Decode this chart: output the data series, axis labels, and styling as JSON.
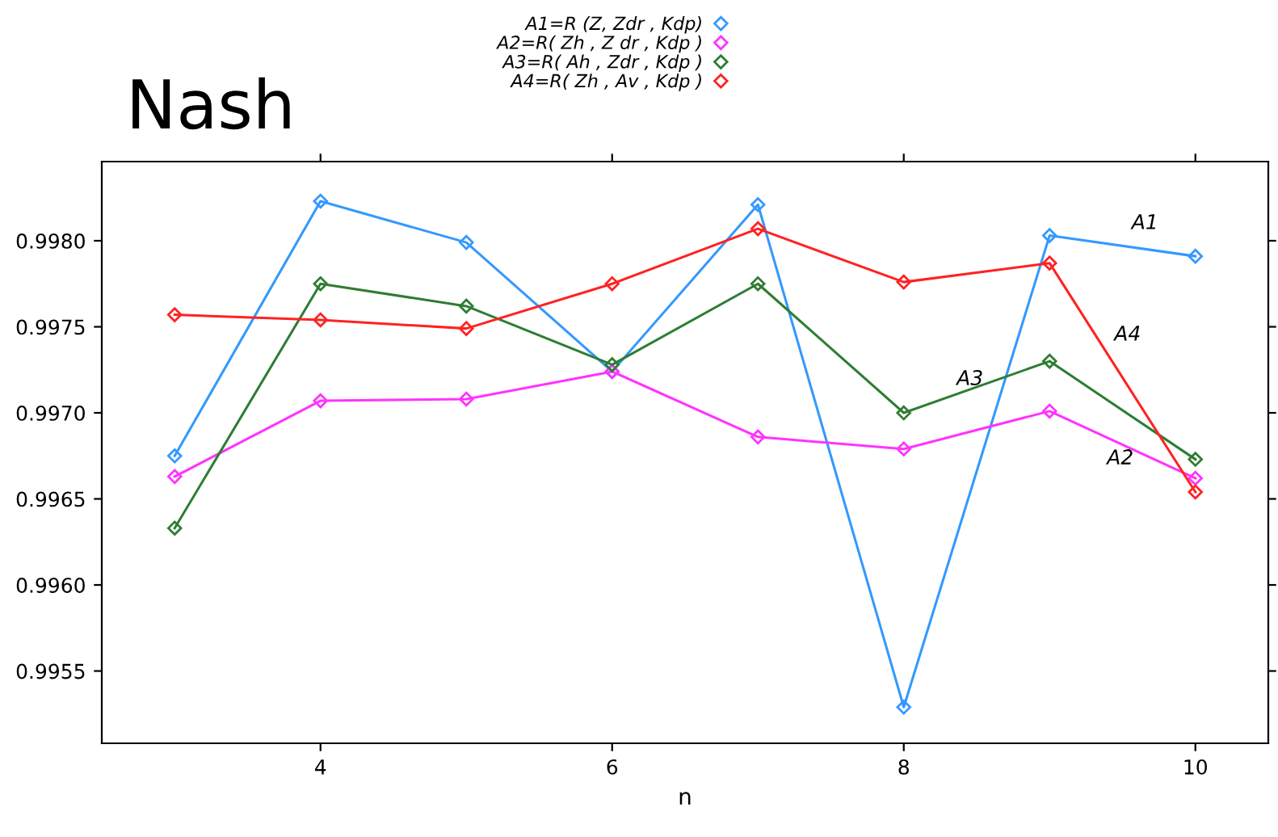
{
  "chart_data": {
    "type": "line",
    "title": "Nash",
    "xlabel": "n",
    "x": [
      3,
      4,
      5,
      6,
      7,
      8,
      9,
      10
    ],
    "series": [
      {
        "name": "A1=R (Z, Zdr , Kdp)",
        "color": "#3399ff",
        "values": [
          0.99675,
          0.99823,
          0.99799,
          0.99724,
          0.99821,
          0.99529,
          0.99803,
          0.99791
        ]
      },
      {
        "name": "A2=R( Zh , Z dr , Kdp )",
        "color": "#ff33ff",
        "values": [
          0.99663,
          0.99707,
          0.99708,
          0.99724,
          0.99686,
          0.99679,
          0.99701,
          0.99662
        ]
      },
      {
        "name": "A3=R( Ah , Zdr , Kdp )",
        "color": "#2e7d32",
        "values": [
          0.99633,
          0.99775,
          0.99762,
          0.99728,
          0.99775,
          0.997,
          0.9973,
          0.99673
        ]
      },
      {
        "name": "A4=R( Zh , Av , Kdp )",
        "color": "#ff2222",
        "values": [
          0.99757,
          0.99754,
          0.99749,
          0.99775,
          0.99807,
          0.99776,
          0.99787,
          0.99654
        ]
      }
    ],
    "annotations": [
      {
        "text": "A1",
        "x": 9.5,
        "y": 0.99797
      },
      {
        "text": "A4",
        "x": 9.35,
        "y": 0.9974
      },
      {
        "text": "A3",
        "x": 8.3,
        "y": 0.99709
      },
      {
        "text": "A2",
        "x": 9.3,
        "y": 0.99689
      }
    ],
    "xlim": [
      2.5,
      10.5
    ],
    "xticks": [
      4,
      6,
      8,
      10
    ],
    "ylim": [
      0.99508,
      0.99846
    ],
    "yticks": [
      {
        "value": 0.9955,
        "label": "0.9955"
      },
      {
        "value": 0.996,
        "label": "0.9960"
      },
      {
        "value": 0.9965,
        "label": "0.9965"
      },
      {
        "value": 0.997,
        "label": "0.9970"
      },
      {
        "value": 0.9975,
        "label": "0.9975"
      },
      {
        "value": 0.998,
        "label": "0.9980"
      }
    ],
    "marker": "diamond",
    "line_style": "solid",
    "grid": false,
    "legend": "top"
  }
}
